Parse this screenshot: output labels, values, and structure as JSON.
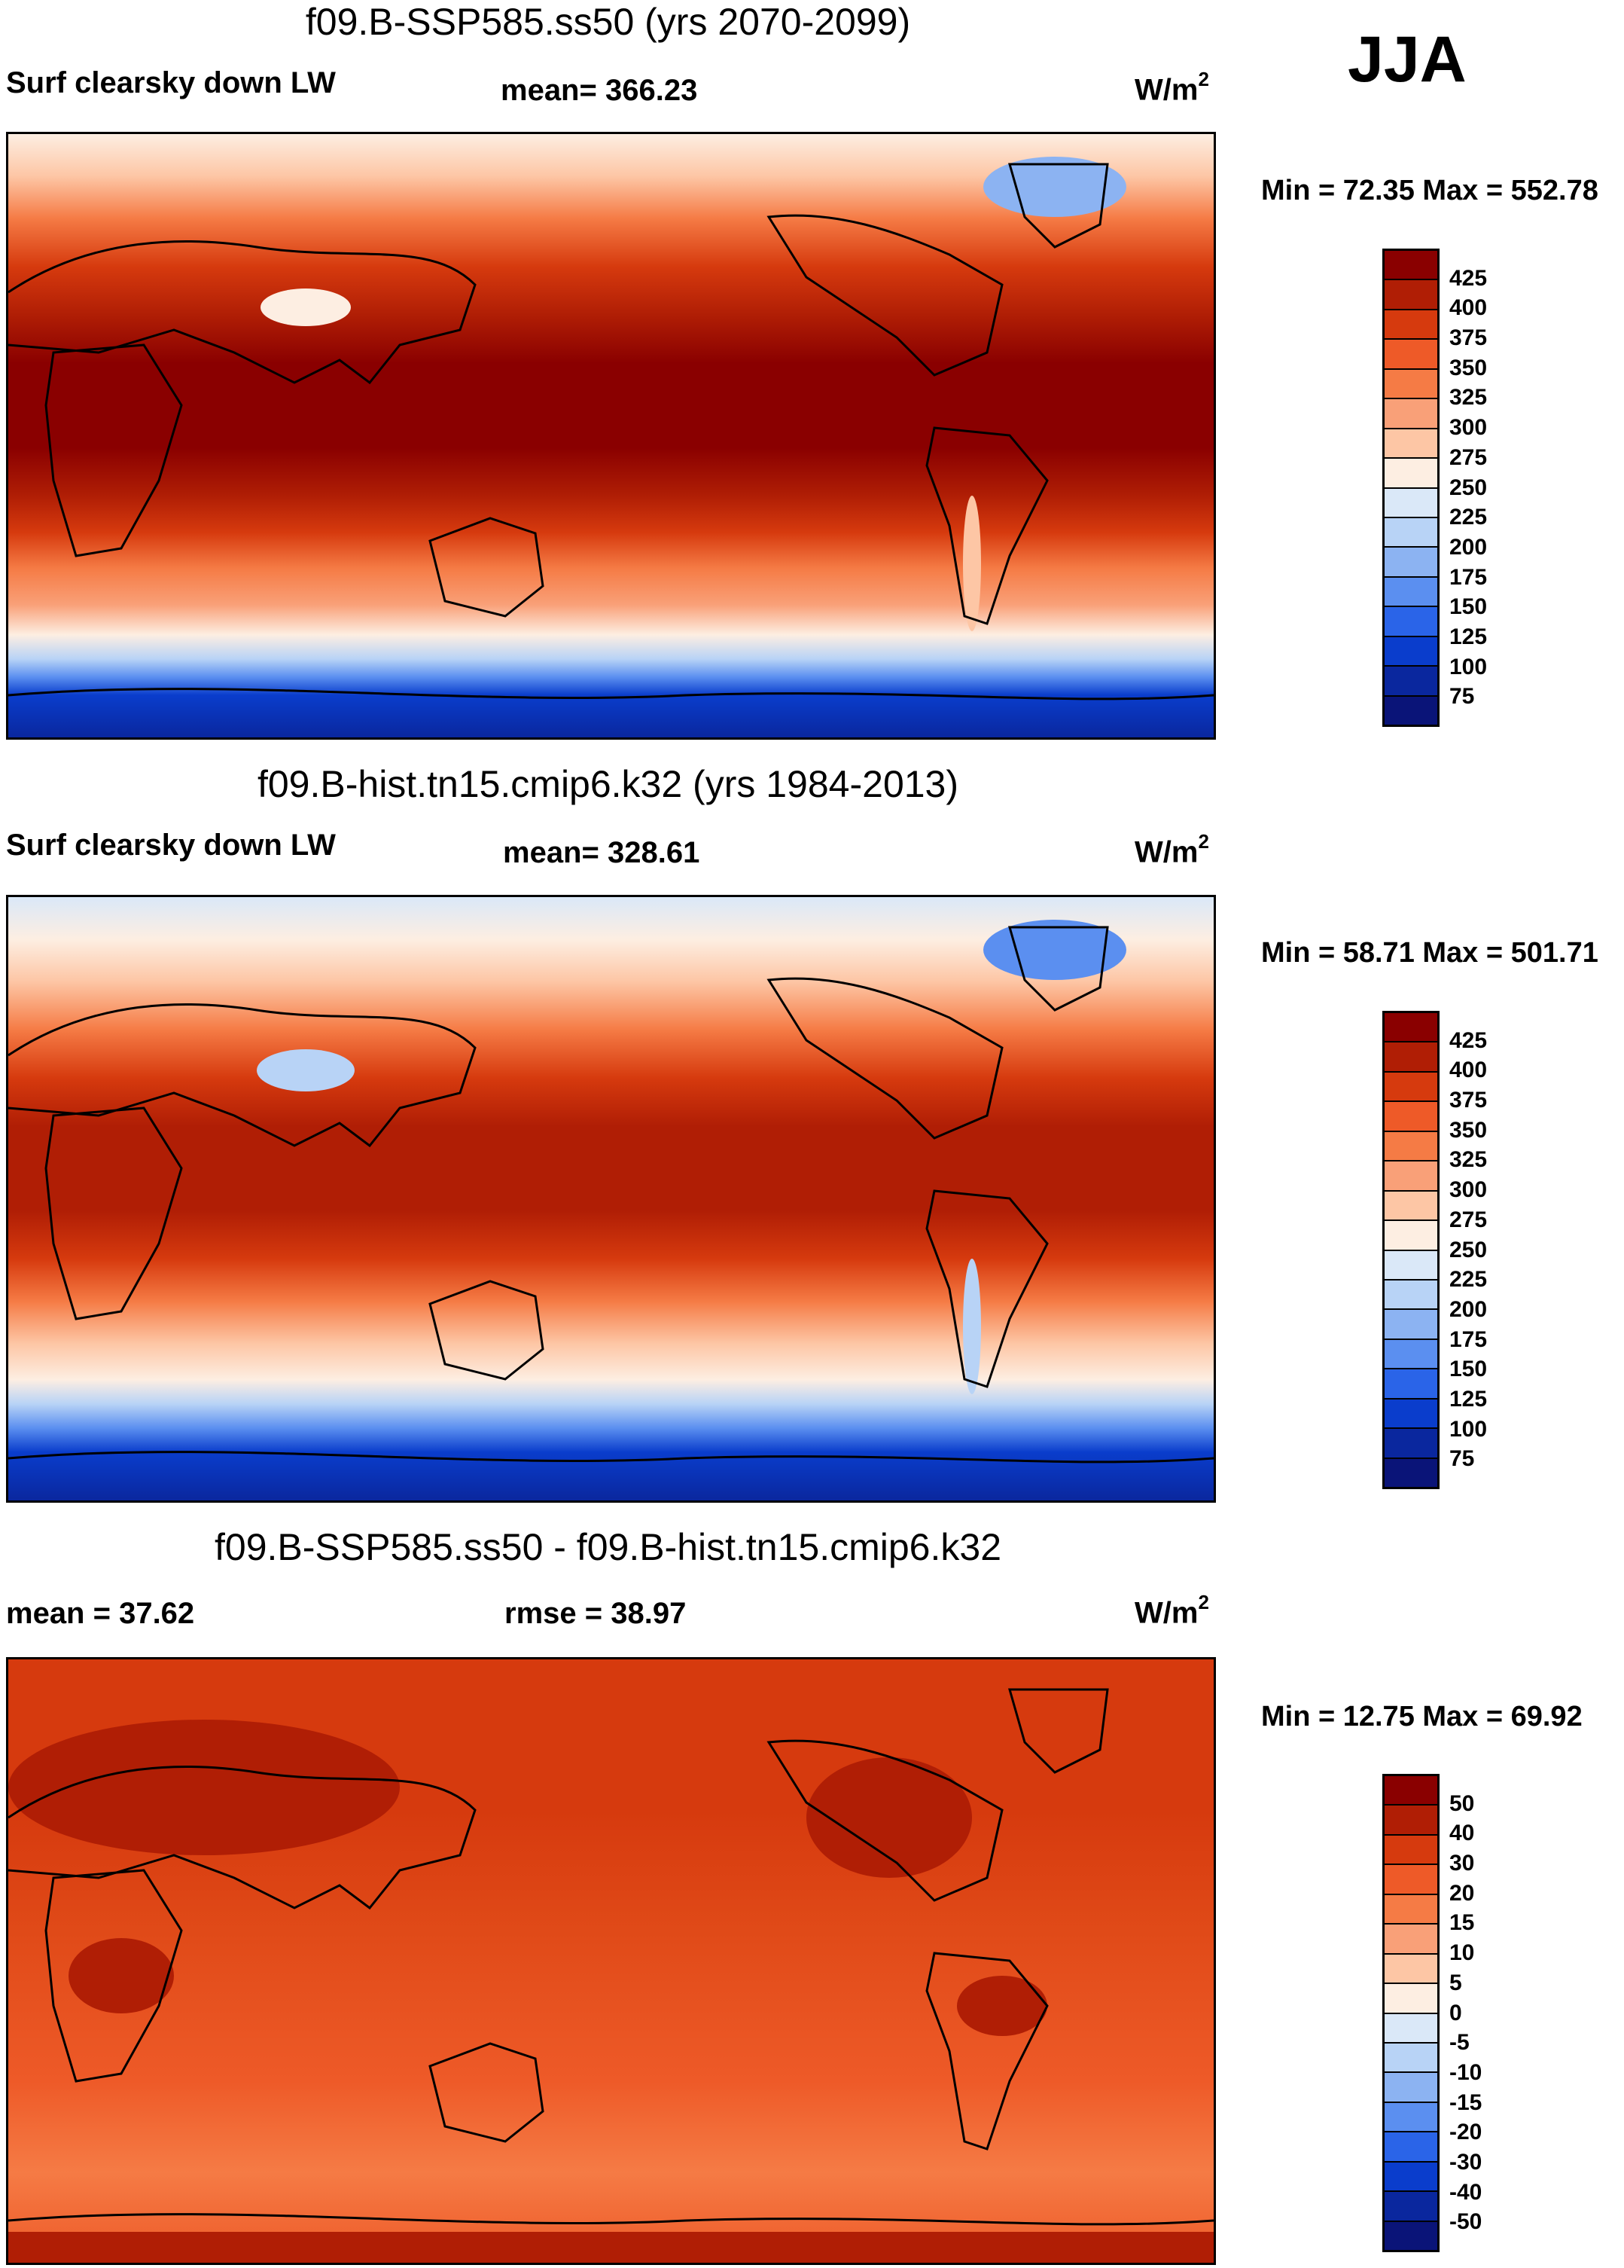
{
  "season": "JJA",
  "colors": {
    "abs_scale": [
      "#8a0000",
      "#b01e05",
      "#d63a0e",
      "#ee5a28",
      "#f57b45",
      "#f9a078",
      "#fdc6a5",
      "#fdeee2",
      "#dae8f8",
      "#b8d3f6",
      "#8cb3f2",
      "#5b8ff0",
      "#2a64e8",
      "#0a3dcc",
      "#0a279e",
      "#0a1478"
    ],
    "diff_scale": [
      "#8a0000",
      "#b01e05",
      "#d63a0e",
      "#ee5a28",
      "#f57b45",
      "#f9a078",
      "#fdc6a5",
      "#fdeee2",
      "#dae8f8",
      "#b8d3f6",
      "#8cb3f2",
      "#5b8ff0",
      "#2a64e8",
      "#0a3dcc",
      "#0a279e",
      "#0a1478"
    ]
  },
  "panels": [
    {
      "title": "f09.B-SSP585.ss50 (yrs 2070-2099)",
      "left_label": "Surf clearsky down LW",
      "stat_label": "mean= 366.23",
      "units": "W/m",
      "units_exp": "2",
      "minmax": "Min =  72.35 Max = 552.78",
      "ticks": [
        "425",
        "400",
        "375",
        "350",
        "325",
        "300",
        "275",
        "250",
        "225",
        "200",
        "175",
        "150",
        "125",
        "100",
        "75"
      ]
    },
    {
      "title": "f09.B-hist.tn15.cmip6.k32 (yrs 1984-2013)",
      "left_label": "Surf clearsky down LW",
      "stat_label": "mean= 328.61",
      "units": "W/m",
      "units_exp": "2",
      "minmax": "Min =  58.71 Max = 501.71",
      "ticks": [
        "425",
        "400",
        "375",
        "350",
        "325",
        "300",
        "275",
        "250",
        "225",
        "200",
        "175",
        "150",
        "125",
        "100",
        "75"
      ]
    },
    {
      "title": "f09.B-SSP585.ss50 - f09.B-hist.tn15.cmip6.k32",
      "left_label": "mean =  37.62",
      "stat_label": "rmse =  38.97",
      "units": "W/m",
      "units_exp": "2",
      "minmax": "Min =  12.75 Max =  69.92",
      "ticks": [
        "50",
        "40",
        "30",
        "20",
        "15",
        "10",
        "5",
        "0",
        "-5",
        "-10",
        "-15",
        "-20",
        "-30",
        "-40",
        "-50"
      ]
    }
  ]
}
